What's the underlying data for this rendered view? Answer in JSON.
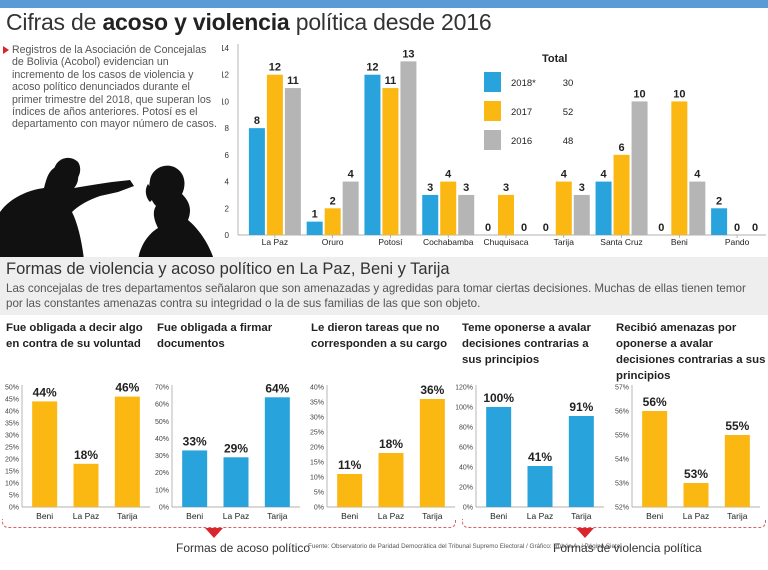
{
  "header": {
    "title_pre": "Cifras de ",
    "title_bold": "acoso y violencia",
    "title_post": " política desde 2016"
  },
  "intro_text": "Registros de la Asociación de Concejalas de Bolivia (Acobol) evidencian un incremento de los casos de violencia y acoso político denunciados durante el primer trimestre del 2018, que superan los índices de años anteriores. Potosí es el departamento con mayor número de casos.",
  "colors": {
    "blue": "#29a3dc",
    "yellow": "#fbb712",
    "gray": "#b5b5b6",
    "accent": "#d9262c"
  },
  "chart_data": [
    {
      "type": "bar",
      "categories": [
        "La Paz",
        "Oruro",
        "Potosí",
        "Cochabamba",
        "Chuquisaca",
        "Tarija",
        "Santa Cruz",
        "Beni",
        "Pando"
      ],
      "series": [
        {
          "name": "2018*",
          "values": [
            8,
            1,
            12,
            3,
            0,
            0,
            4,
            0,
            2
          ],
          "color": "#29a3dc",
          "total": "30"
        },
        {
          "name": "2017",
          "values": [
            12,
            2,
            11,
            4,
            3,
            4,
            6,
            10,
            0
          ],
          "color": "#fbb712",
          "total": "52"
        },
        {
          "name": "2016",
          "values": [
            11,
            4,
            13,
            3,
            0,
            3,
            10,
            4,
            0
          ],
          "color": "#b5b5b6",
          "total": "48"
        }
      ],
      "legend_title": "Total",
      "ylim": [
        0,
        14
      ],
      "yticks": [
        "0",
        "2",
        "4",
        "6",
        "8",
        "10",
        "12",
        "14"
      ],
      "legend": "top-right"
    },
    {
      "type": "bar",
      "title": "Fue obligada a decir algo en contra de su voluntad",
      "categories": [
        "Beni",
        "La Paz",
        "Tarija"
      ],
      "values": [
        44,
        18,
        46
      ],
      "labels": [
        "44%",
        "18%",
        "46%"
      ],
      "color": "#fbb712",
      "ylim": [
        0,
        50
      ],
      "yticks": [
        "0%",
        "5%",
        "10%",
        "15%",
        "20%",
        "25%",
        "30%",
        "35%",
        "40%",
        "45%",
        "50%"
      ]
    },
    {
      "type": "bar",
      "title": "Fue obligada a firmar documentos",
      "categories": [
        "Beni",
        "La Paz",
        "Tarija"
      ],
      "values": [
        33,
        29,
        64
      ],
      "labels": [
        "33%",
        "29%",
        "64%"
      ],
      "color": "#29a3dc",
      "ylim": [
        0,
        70
      ],
      "yticks": [
        "0%",
        "10%",
        "20%",
        "30%",
        "40%",
        "50%",
        "60%",
        "70%"
      ]
    },
    {
      "type": "bar",
      "title": "Le dieron tareas que no corresponden a su cargo",
      "categories": [
        "Beni",
        "La Paz",
        "Tarija"
      ],
      "values": [
        11,
        18,
        36
      ],
      "labels": [
        "11%",
        "18%",
        "36%"
      ],
      "color": "#fbb712",
      "ylim": [
        0,
        40
      ],
      "yticks": [
        "0%",
        "5%",
        "10%",
        "15%",
        "20%",
        "25%",
        "30%",
        "35%",
        "40%"
      ]
    },
    {
      "type": "bar",
      "title": "Teme oponerse a avalar decisiones contrarias a sus principios",
      "categories": [
        "Beni",
        "La Paz",
        "Tarija"
      ],
      "values": [
        100,
        41,
        91
      ],
      "labels": [
        "100%",
        "41%",
        "91%"
      ],
      "color": "#29a3dc",
      "ylim": [
        0,
        120
      ],
      "yticks": [
        "0%",
        "20%",
        "40%",
        "60%",
        "80%",
        "100%",
        "120%"
      ]
    },
    {
      "type": "bar",
      "title": "Recibió amenazas por oponerse a avalar decisiones contrarias a sus principios",
      "categories": [
        "Beni",
        "La Paz",
        "Tarija"
      ],
      "values": [
        56,
        53,
        55
      ],
      "labels": [
        "56%",
        "53%",
        "55%"
      ],
      "color": "#fbb712",
      "ylim": [
        52,
        57
      ],
      "yticks": [
        "52%",
        "53%",
        "54%",
        "55%",
        "56%",
        "57%"
      ]
    }
  ],
  "section2": {
    "title": "Formas de violencia y acoso político en La Paz, Beni y Tarija",
    "description": "Las concejalas de tres departamentos señalaron que son amenazadas y agredidas para tomar ciertas decisiones. Muchas de ellas tienen temor por las constantes amenazas contra su integridad o la de sus familias de las que son objeto."
  },
  "captions": {
    "acoso": "Formas de acoso político",
    "violencia": "Formas de violencia política"
  },
  "source": "Fuente: Observatorio de Paridad Democrática del Tribunal Supremo Electoral / Gráfico: Rubén A. / Página Siete"
}
